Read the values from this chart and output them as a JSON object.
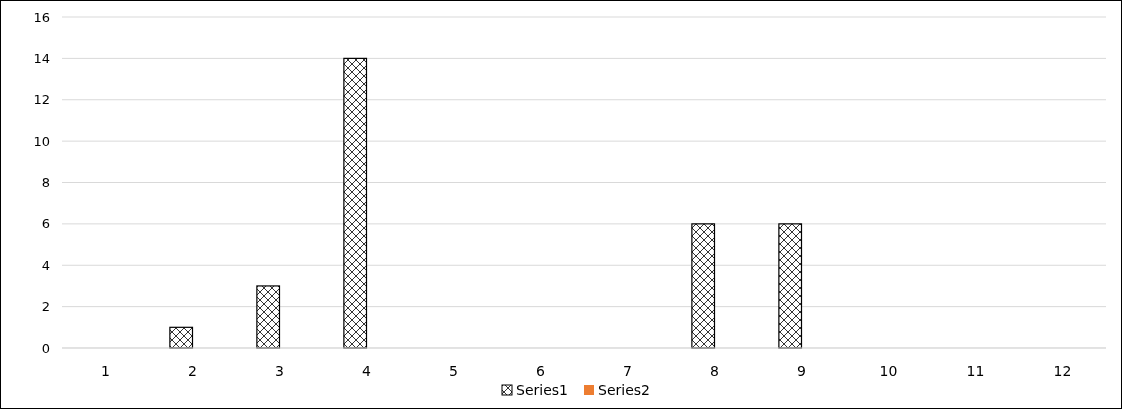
{
  "chart_data": {
    "type": "bar",
    "categories": [
      "1",
      "2",
      "3",
      "4",
      "5",
      "6",
      "7",
      "8",
      "9",
      "10",
      "11",
      "12"
    ],
    "series": [
      {
        "name": "Series1",
        "color": "#000000",
        "values": [
          0,
          1,
          3,
          14,
          0,
          0,
          0,
          6,
          6,
          0,
          0,
          0
        ]
      },
      {
        "name": "Series2",
        "color": "#ed7d31",
        "values": [
          0,
          0,
          0,
          0,
          0,
          0,
          0,
          0,
          0,
          0,
          0,
          0
        ]
      }
    ],
    "ylim": [
      0,
      16
    ],
    "yticks": [
      0,
      2,
      4,
      6,
      8,
      10,
      12,
      14,
      16
    ],
    "grid": "y",
    "legend": "bottom"
  }
}
